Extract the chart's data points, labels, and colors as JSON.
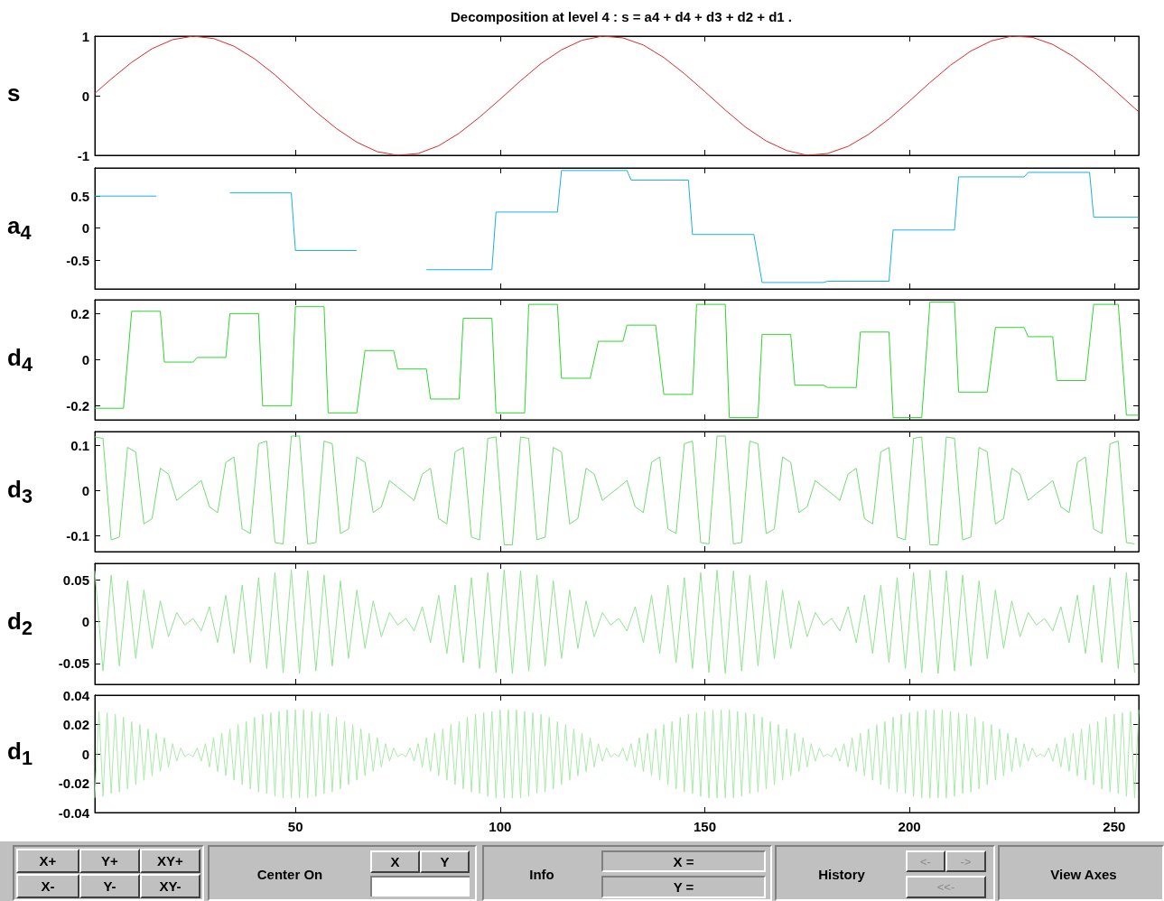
{
  "chart_data": [
    {
      "type": "line",
      "title": "Decomposition at level 4 : s = a4 + d4 + d3 + d2 + d1 .",
      "ylabel": "s",
      "color": "#e02828",
      "marker": "none",
      "tick_labels": "y",
      "xlim": [
        1,
        256
      ],
      "xticks": [
        50,
        100,
        150,
        200,
        250
      ],
      "ylim": [
        -1,
        1
      ],
      "yticks": [
        -1,
        0,
        1
      ],
      "x": [
        1,
        5,
        10,
        15,
        20,
        25,
        30,
        35,
        40,
        45,
        50,
        55,
        60,
        65,
        70,
        75,
        80,
        85,
        90,
        95,
        100,
        105,
        110,
        115,
        120,
        125,
        130,
        135,
        140,
        145,
        150,
        155,
        160,
        165,
        170,
        175,
        180,
        185,
        190,
        195,
        200,
        205,
        210,
        215,
        220,
        225,
        230,
        235,
        240,
        245,
        250,
        255,
        256
      ],
      "values": [
        0.04,
        0.28,
        0.56,
        0.79,
        0.94,
        1,
        0.96,
        0.83,
        0.62,
        0.35,
        0.04,
        -0.27,
        -0.55,
        -0.78,
        -0.94,
        -1,
        -0.97,
        -0.84,
        -0.63,
        -0.36,
        -0.06,
        0.25,
        0.54,
        0.77,
        0.93,
        1,
        0.97,
        0.85,
        0.64,
        0.37,
        0.07,
        -0.24,
        -0.53,
        -0.76,
        -0.92,
        -1,
        -0.97,
        -0.85,
        -0.65,
        -0.39,
        -0.09,
        0.22,
        0.51,
        0.75,
        0.92,
        1,
        0.98,
        0.86,
        0.66,
        0.4,
        0.1,
        -0.21,
        -0.27
      ]
    },
    {
      "type": "line",
      "ylabel": "a$_{4}$",
      "color": "#1ab0e0",
      "marker": "none",
      "tick_labels": "y",
      "xlim": [
        1,
        256
      ],
      "xticks": [
        50,
        100,
        150,
        200,
        250
      ],
      "ylim": [
        -0.95,
        0.94
      ],
      "yticks": [
        -0.5,
        0,
        0.5
      ],
      "x": [
        1,
        16,
        18,
        33,
        34,
        49,
        50,
        65,
        66,
        81,
        82,
        98,
        99,
        114,
        115,
        131,
        132,
        146,
        147,
        162,
        164,
        179,
        180,
        195,
        196,
        211,
        212,
        228,
        229,
        244,
        245,
        256
      ],
      "values": [
        0.5,
        0.5,
        null,
        null,
        0.55,
        0.55,
        -0.35,
        -0.35,
        null,
        null,
        -0.65,
        -0.65,
        0.25,
        0.25,
        0.9,
        0.9,
        0.75,
        0.75,
        -0.1,
        -0.1,
        -0.85,
        -0.85,
        -0.83,
        -0.83,
        -0.03,
        -0.03,
        0.8,
        0.8,
        0.87,
        0.87,
        0.17,
        0.17
      ]
    },
    {
      "type": "line",
      "ylabel": "d$_{4}$",
      "color": "#2ed62e",
      "marker": "none",
      "tick_labels": "y",
      "xlim": [
        1,
        256
      ],
      "xticks": [
        50,
        100,
        150,
        200,
        250
      ],
      "ylim": [
        -0.26,
        0.26
      ],
      "yticks": [
        -0.2,
        0,
        0.2
      ],
      "x": [
        1,
        8,
        10,
        17,
        18,
        25,
        26,
        33,
        34,
        41,
        42,
        49,
        50,
        57,
        58,
        65,
        67,
        74,
        75,
        82,
        83,
        90,
        91,
        98,
        99,
        106,
        107,
        114,
        115,
        122,
        124,
        130,
        131,
        138,
        140,
        147,
        148,
        155,
        156,
        163,
        164,
        171,
        172,
        179,
        180,
        187,
        188,
        195,
        196,
        203,
        205,
        211,
        212,
        219,
        221,
        228,
        229,
        235,
        236,
        243,
        245,
        251,
        253,
        256
      ],
      "values": [
        -0.21,
        -0.21,
        0.21,
        0.21,
        -0.01,
        -0.01,
        0.01,
        0.01,
        0.2,
        0.2,
        -0.2,
        -0.2,
        0.23,
        0.23,
        -0.23,
        -0.23,
        0.04,
        0.04,
        -0.04,
        -0.04,
        -0.17,
        -0.17,
        0.18,
        0.18,
        -0.23,
        -0.23,
        0.24,
        0.24,
        -0.08,
        -0.08,
        0.08,
        0.08,
        0.15,
        0.15,
        -0.15,
        -0.15,
        0.24,
        0.24,
        -0.25,
        -0.25,
        0.11,
        0.11,
        -0.11,
        -0.11,
        -0.12,
        -0.12,
        0.12,
        0.12,
        -0.25,
        -0.25,
        0.25,
        0.25,
        -0.14,
        -0.14,
        0.14,
        0.14,
        0.1,
        0.1,
        -0.09,
        -0.09,
        0.24,
        0.24,
        -0.24,
        -0.24
      ]
    },
    {
      "type": "line",
      "ylabel": "d$_{3}$",
      "color": "#6fdc6f",
      "marker": "none",
      "tick_labels": "y",
      "xlim": [
        1,
        256
      ],
      "xticks": [
        50,
        100,
        150,
        200,
        250
      ],
      "ylim": [
        -0.135,
        0.13
      ],
      "yticks": [
        -0.1,
        0,
        0.1
      ],
      "x": [
        1,
        3,
        5,
        7,
        9,
        11,
        13,
        15,
        17,
        19,
        21,
        23,
        25,
        27,
        29,
        31,
        33,
        35,
        37,
        39,
        41,
        43,
        45,
        47,
        49,
        51,
        53,
        55,
        57,
        59,
        61,
        63,
        65,
        67,
        69,
        71,
        73,
        75,
        77,
        79,
        81,
        83,
        85,
        87,
        89,
        91,
        93,
        95,
        97,
        99,
        101,
        103,
        105,
        107,
        109,
        111,
        113,
        115,
        117,
        119,
        121,
        123,
        125,
        127,
        129,
        131,
        133,
        135,
        137,
        139,
        141,
        143,
        145,
        147,
        149,
        151,
        153,
        155,
        157,
        159,
        161,
        163,
        165,
        167,
        169,
        171,
        173,
        175,
        177,
        179,
        181,
        183,
        185,
        187,
        189,
        191,
        193,
        195,
        197,
        199,
        201,
        203,
        205,
        207,
        209,
        211,
        213,
        215,
        217,
        219,
        221,
        223,
        225,
        227,
        229,
        231,
        233,
        235,
        237,
        239,
        241,
        243,
        245,
        247,
        249,
        251,
        253,
        255
      ],
      "values": [
        0.118,
        0.115,
        -0.109,
        -0.103,
        0.095,
        0.085,
        -0.074,
        -0.062,
        0.049,
        0.036,
        -0.022,
        -0.007,
        0.007,
        0.022,
        -0.036,
        -0.049,
        0.062,
        0.074,
        -0.085,
        -0.095,
        0.103,
        0.109,
        -0.115,
        -0.118,
        0.12,
        0.12,
        -0.118,
        -0.115,
        0.109,
        0.103,
        -0.095,
        -0.085,
        0.074,
        0.062,
        -0.049,
        -0.036,
        0.022,
        0.007,
        -0.007,
        -0.022,
        0.036,
        0.049,
        -0.062,
        -0.074,
        0.085,
        0.095,
        -0.103,
        -0.109,
        0.115,
        0.118,
        -0.12,
        -0.12,
        0.118,
        0.115,
        -0.109,
        -0.103,
        0.095,
        0.085,
        -0.074,
        -0.062,
        0.049,
        0.036,
        -0.022,
        -0.007,
        0.007,
        0.022,
        -0.036,
        -0.049,
        0.062,
        0.074,
        -0.085,
        -0.095,
        0.103,
        0.109,
        -0.115,
        -0.118,
        0.12,
        0.12,
        -0.118,
        -0.115,
        0.109,
        0.103,
        -0.095,
        -0.085,
        0.074,
        0.062,
        -0.049,
        -0.036,
        0.022,
        0.007,
        -0.007,
        -0.022,
        0.036,
        0.049,
        -0.062,
        -0.074,
        0.085,
        0.095,
        -0.103,
        -0.109,
        0.115,
        0.118,
        -0.12,
        -0.12,
        0.118,
        0.115,
        -0.109,
        -0.103,
        0.095,
        0.085,
        -0.074,
        -0.062,
        0.049,
        0.036,
        -0.022,
        -0.007,
        0.007,
        0.022,
        -0.036,
        -0.049,
        0.062,
        0.074,
        -0.085,
        -0.095,
        0.103,
        0.109,
        -0.115,
        -0.118
      ]
    },
    {
      "type": "line",
      "ylabel": "d$_{2}$",
      "color": "#8fe48f",
      "marker": "none",
      "tick_labels": "y",
      "xlim": [
        1,
        256
      ],
      "xticks": [
        50,
        100,
        150,
        200,
        250
      ],
      "ylim": [
        -0.075,
        0.07
      ],
      "yticks": [
        -0.05,
        0,
        0.05
      ],
      "x": [
        1,
        3,
        5,
        7,
        9,
        11,
        13,
        15,
        17,
        19,
        21,
        23,
        25,
        27,
        29,
        31,
        33,
        35,
        37,
        39,
        41,
        43,
        45,
        47,
        49,
        51,
        53,
        55,
        57,
        59,
        61,
        63,
        65,
        67,
        69,
        71,
        73,
        75,
        77,
        79,
        81,
        83,
        85,
        87,
        89,
        91,
        93,
        95,
        97,
        99,
        101,
        103,
        105,
        107,
        109,
        111,
        113,
        115,
        117,
        119,
        121,
        123,
        125,
        127,
        129,
        131,
        133,
        135,
        137,
        139,
        141,
        143,
        145,
        147,
        149,
        151,
        153,
        155,
        157,
        159,
        161,
        163,
        165,
        167,
        169,
        171,
        173,
        175,
        177,
        179,
        181,
        183,
        185,
        187,
        189,
        191,
        193,
        195,
        197,
        199,
        201,
        203,
        205,
        207,
        209,
        211,
        213,
        215,
        217,
        219,
        221,
        223,
        225,
        227,
        229,
        231,
        233,
        235,
        237,
        239,
        241,
        243,
        245,
        247,
        249,
        251,
        253,
        255
      ],
      "values": [
        0.061,
        -0.059,
        0.056,
        -0.053,
        0.049,
        -0.044,
        0.038,
        -0.032,
        0.025,
        -0.018,
        0.011,
        -0.004,
        0.004,
        -0.011,
        0.018,
        -0.025,
        0.032,
        -0.038,
        0.044,
        -0.049,
        0.053,
        -0.056,
        0.059,
        -0.061,
        0.062,
        -0.062,
        0.061,
        -0.059,
        0.056,
        -0.053,
        0.049,
        -0.044,
        0.038,
        -0.032,
        0.025,
        -0.018,
        0.011,
        -0.004,
        0.004,
        -0.011,
        0.018,
        -0.025,
        0.032,
        -0.038,
        0.044,
        -0.049,
        0.053,
        -0.056,
        0.059,
        -0.061,
        0.062,
        -0.062,
        0.061,
        -0.059,
        0.056,
        -0.053,
        0.049,
        -0.044,
        0.038,
        -0.032,
        0.025,
        -0.018,
        0.011,
        -0.004,
        0.004,
        -0.011,
        0.018,
        -0.025,
        0.032,
        -0.038,
        0.044,
        -0.049,
        0.053,
        -0.056,
        0.059,
        -0.061,
        0.062,
        -0.062,
        0.061,
        -0.059,
        0.056,
        -0.053,
        0.049,
        -0.044,
        0.038,
        -0.032,
        0.025,
        -0.018,
        0.011,
        -0.004,
        0.004,
        -0.011,
        0.018,
        -0.025,
        0.032,
        -0.038,
        0.044,
        -0.049,
        0.053,
        -0.056,
        0.059,
        -0.061,
        0.062,
        -0.062,
        0.061,
        -0.059,
        0.056,
        -0.053,
        0.049,
        -0.044,
        0.038,
        -0.032,
        0.025,
        -0.018,
        0.011,
        -0.004,
        0.004,
        -0.011,
        0.018,
        -0.025,
        0.032,
        -0.038,
        0.044,
        -0.049,
        0.053,
        -0.056,
        0.059,
        -0.061
      ]
    },
    {
      "type": "line",
      "ylabel": "d$_{1}$",
      "color": "#a8eaa8",
      "marker": "none",
      "xlim": [
        1,
        256
      ],
      "xticks": [
        50,
        100,
        150,
        200,
        250
      ],
      "ylim": [
        -0.04,
        0.04
      ],
      "yticks": [
        -0.04,
        -0.02,
        0,
        0.02,
        0.04
      ],
      "x": [
        1,
        2,
        3,
        4,
        5,
        6,
        7,
        8,
        9,
        10,
        11,
        12,
        13,
        14,
        15,
        16,
        17,
        18,
        19,
        20,
        21,
        22,
        23,
        24,
        25,
        26,
        27,
        28,
        29,
        30,
        31,
        32,
        33,
        34,
        35,
        36,
        37,
        38,
        39,
        40,
        41,
        42,
        43,
        44,
        45,
        46,
        47,
        48,
        49,
        50,
        51,
        52,
        53,
        54,
        55,
        56,
        57,
        58,
        59,
        60,
        61,
        62,
        63,
        64,
        65,
        66,
        67,
        68,
        69,
        70,
        71,
        72,
        73,
        74,
        75,
        76,
        77,
        78,
        79,
        80,
        81,
        82,
        83,
        84,
        85,
        86,
        87,
        88,
        89,
        90,
        91,
        92,
        93,
        94,
        95,
        96,
        97,
        98,
        99,
        100,
        101,
        102,
        103,
        104,
        105,
        106,
        107,
        108,
        109,
        110,
        111,
        112,
        113,
        114,
        115,
        116,
        117,
        118,
        119,
        120,
        121,
        122,
        123,
        124,
        125,
        126,
        127,
        128,
        129,
        130,
        131,
        132,
        133,
        134,
        135,
        136,
        137,
        138,
        139,
        140,
        141,
        142,
        143,
        144,
        145,
        146,
        147,
        148,
        149,
        150,
        151,
        152,
        153,
        154,
        155,
        156,
        157,
        158,
        159,
        160,
        161,
        162,
        163,
        164,
        165,
        166,
        167,
        168,
        169,
        170,
        171,
        172,
        173,
        174,
        175,
        176,
        177,
        178,
        179,
        180,
        181,
        182,
        183,
        184,
        185,
        186,
        187,
        188,
        189,
        190,
        191,
        192,
        193,
        194,
        195,
        196,
        197,
        198,
        199,
        200,
        201,
        202,
        203,
        204,
        205,
        206,
        207,
        208,
        209,
        210,
        211,
        212,
        213,
        214,
        215,
        216,
        217,
        218,
        219,
        220,
        221,
        222,
        223,
        224,
        225,
        226,
        227,
        228,
        229,
        230,
        231,
        232,
        233,
        234,
        235,
        236,
        237,
        238,
        239,
        240,
        241,
        242,
        243,
        244,
        245,
        246,
        247,
        248,
        249,
        250,
        251,
        252,
        253,
        254,
        255,
        256
      ],
      "values": [
        -0.03,
        0.029,
        -0.029,
        0.028,
        -0.027,
        0.027,
        -0.026,
        0.025,
        -0.024,
        0.022,
        -0.021,
        0.02,
        -0.018,
        0.017,
        -0.015,
        0.014,
        -0.012,
        0.011,
        -0.009,
        0.007,
        -0.005,
        0.004,
        -0.002,
        0,
        -0.002,
        0.004,
        -0.005,
        0.007,
        -0.009,
        0.011,
        -0.012,
        0.014,
        -0.015,
        0.017,
        -0.018,
        0.02,
        -0.021,
        0.022,
        -0.024,
        0.025,
        -0.026,
        0.027,
        -0.027,
        0.028,
        -0.029,
        0.029,
        -0.03,
        0.03,
        -0.03,
        0.03,
        -0.03,
        0.03,
        -0.03,
        0.029,
        -0.029,
        0.028,
        -0.027,
        0.027,
        -0.026,
        0.025,
        -0.024,
        0.022,
        -0.021,
        0.02,
        -0.018,
        0.017,
        -0.015,
        0.014,
        -0.012,
        0.011,
        -0.009,
        0.007,
        -0.005,
        0.004,
        -0.002,
        0,
        -0.002,
        0.004,
        -0.005,
        0.007,
        -0.009,
        0.011,
        -0.012,
        0.014,
        -0.015,
        0.017,
        -0.018,
        0.02,
        -0.021,
        0.022,
        -0.024,
        0.025,
        -0.026,
        0.027,
        -0.027,
        0.028,
        -0.029,
        0.029,
        -0.03,
        0.03,
        -0.03,
        0.03,
        -0.03,
        0.03,
        -0.03,
        0.029,
        -0.029,
        0.028,
        -0.027,
        0.027,
        -0.026,
        0.025,
        -0.024,
        0.022,
        -0.021,
        0.02,
        -0.018,
        0.017,
        -0.015,
        0.014,
        -0.012,
        0.011,
        -0.009,
        0.007,
        -0.005,
        0.004,
        -0.002,
        0,
        -0.002,
        0.004,
        -0.005,
        0.007,
        -0.009,
        0.011,
        -0.012,
        0.014,
        -0.015,
        0.017,
        -0.018,
        0.02,
        -0.021,
        0.022,
        -0.024,
        0.025,
        -0.026,
        0.027,
        -0.027,
        0.028,
        -0.029,
        0.029,
        -0.03,
        0.03,
        -0.03,
        0.03,
        -0.03,
        0.03,
        -0.03,
        0.029,
        -0.029,
        0.028,
        -0.027,
        0.027,
        -0.026,
        0.025,
        -0.024,
        0.022,
        -0.021,
        0.02,
        -0.018,
        0.017,
        -0.015,
        0.014,
        -0.012,
        0.011,
        -0.009,
        0.007,
        -0.005,
        0.004,
        -0.002,
        0,
        -0.002,
        0.004,
        -0.005,
        0.007,
        -0.009,
        0.011,
        -0.012,
        0.014,
        -0.015,
        0.017,
        -0.018,
        0.02,
        -0.021,
        0.022,
        -0.024,
        0.025,
        -0.026,
        0.027,
        -0.027,
        0.028,
        -0.029,
        0.029,
        -0.03,
        0.03,
        -0.03,
        0.03,
        -0.03,
        0.03,
        -0.03,
        0.029,
        -0.029,
        0.028,
        -0.027,
        0.027,
        -0.026,
        0.025,
        -0.024,
        0.022,
        -0.021,
        0.02,
        -0.018,
        0.017,
        -0.015,
        0.014,
        -0.012,
        0.011,
        -0.009,
        0.007,
        -0.005,
        0.004,
        -0.002,
        0,
        -0.002,
        0.004,
        -0.005,
        0.007,
        -0.009,
        0.011,
        -0.012,
        0.014,
        -0.015,
        0.017,
        -0.018,
        0.02,
        -0.021,
        0.022,
        -0.024,
        0.025,
        -0.026,
        0.027,
        -0.027,
        0.028,
        -0.029,
        0.029,
        -0.03,
        0.03
      ]
    },
    {
      "type": "other",
      "annotations": [
        "X+",
        "Y+",
        "XY+",
        "X-",
        "Y-",
        "XY-",
        "Center On",
        "X",
        "Y",
        "Info",
        "X =",
        "Y =",
        "History",
        "<-",
        "->",
        "<<-",
        "View Axes"
      ]
    }
  ]
}
